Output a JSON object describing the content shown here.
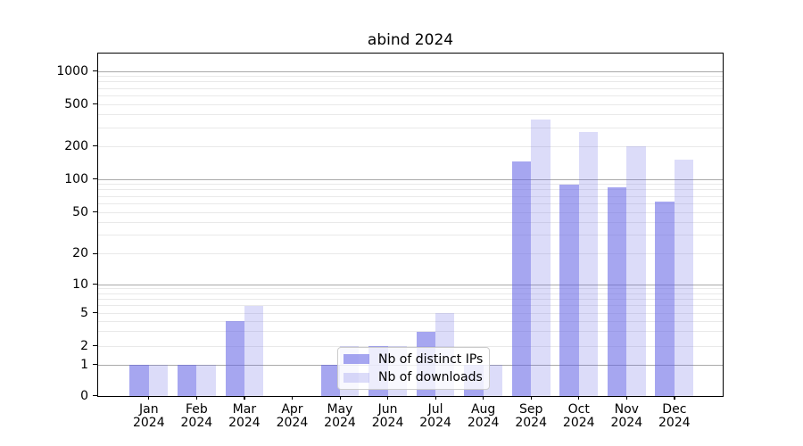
{
  "figure": {
    "kind": "static-chart-image"
  },
  "chart_data": {
    "type": "bar",
    "title": "abind 2024",
    "categories": [
      "Jan 2024",
      "Feb 2024",
      "Mar 2024",
      "Apr 2024",
      "May 2024",
      "Jun 2024",
      "Jul 2024",
      "Aug 2024",
      "Sep 2024",
      "Oct 2024",
      "Nov 2024",
      "Dec 2024"
    ],
    "series": [
      {
        "name": "Nb of distinct IPs",
        "color": "rgba(99,99,228,0.57)",
        "values": [
          1,
          1,
          4,
          0,
          1,
          2,
          3,
          1,
          145,
          90,
          85,
          63
        ]
      },
      {
        "name": "Nb of downloads",
        "color": "rgba(99,99,228,0.225)",
        "values": [
          1,
          1,
          6,
          0,
          2,
          2,
          5,
          1,
          360,
          275,
          200,
          150
        ]
      }
    ],
    "xlabel": "",
    "ylabel": "",
    "yscale": "log-like (0,1 then log decades)",
    "yticks": [
      0,
      1,
      2,
      5,
      10,
      20,
      50,
      100,
      200,
      500,
      1000
    ],
    "ylim": [
      0,
      1460
    ],
    "grid": true,
    "legend_position": "lower center, inside axes"
  },
  "colors": {
    "major_grid": "#a9a9a9",
    "minor_grid": "#e9e9e9",
    "axis": "#000000",
    "background": "#ffffff"
  }
}
